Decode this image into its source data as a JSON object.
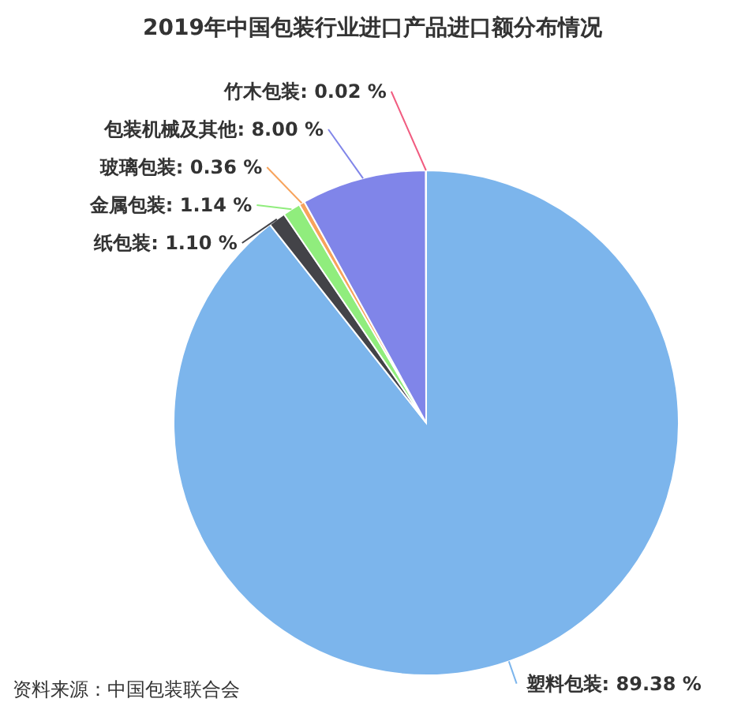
{
  "chart_data": {
    "type": "pie",
    "title": "2019年中国包装行业进口产品进口额分布情况",
    "categories": [
      "塑料包装",
      "纸包装",
      "金属包装",
      "玻璃包装",
      "包装机械及其他",
      "竹木包装"
    ],
    "values": [
      89.38,
      1.1,
      1.14,
      0.36,
      8.0,
      0.02
    ],
    "value_labels": [
      "89.38 %",
      "1.10 %",
      "1.14 %",
      "0.36 %",
      "8.00 %",
      "0.02 %"
    ],
    "colors": [
      "#7cb5ec",
      "#434348",
      "#90ed7d",
      "#f7a35c",
      "#8085e9",
      "#f15c80"
    ],
    "annotations": [
      "资料来源：中国包装联合会"
    ]
  }
}
